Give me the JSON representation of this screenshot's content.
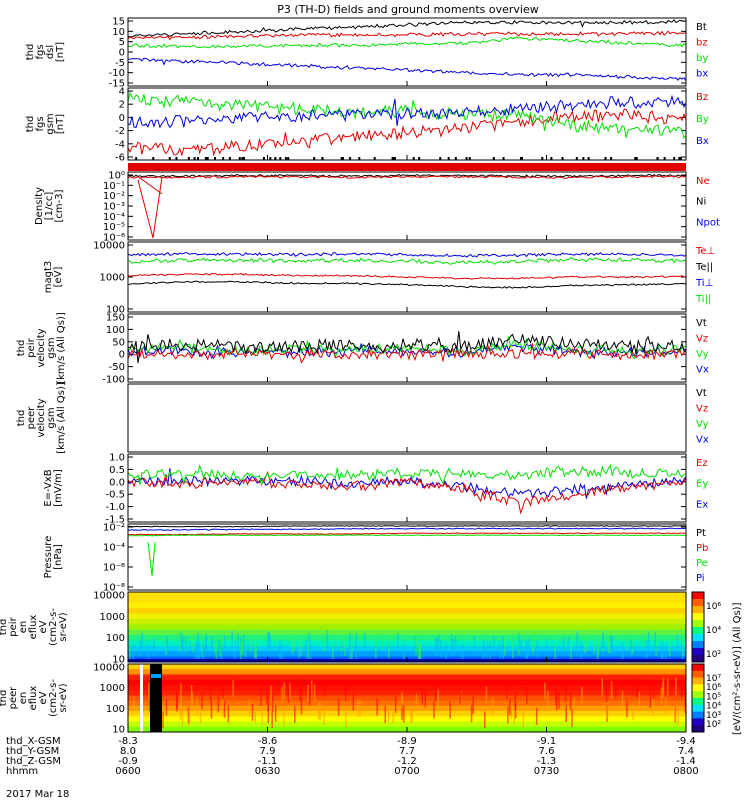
{
  "title": "P3 (TH-D) fields and ground moments overview",
  "date_label": "2017 Mar 18",
  "colors": {
    "black": "#000000",
    "red": "#e00000",
    "green": "#00e000",
    "blue": "#0000e0",
    "frame": "#000000"
  },
  "panels": [
    {
      "id": "fgs-dsl",
      "ylabel": [
        "thd",
        "fgs",
        "dsl",
        "[nT]"
      ],
      "ticks": [
        "15",
        "10",
        "5",
        "0",
        "-5",
        "-10",
        "-15"
      ],
      "ylim": [
        -15,
        15
      ],
      "legend": [
        {
          "label": "Bt",
          "color": "black"
        },
        {
          "label": "bz",
          "color": "red"
        },
        {
          "label": "by",
          "color": "green"
        },
        {
          "label": "bx",
          "color": "blue"
        }
      ]
    },
    {
      "id": "fgs-gsm",
      "ylabel": [
        "thd",
        "fgs",
        "gsm",
        "[nT]"
      ],
      "ticks": [
        "4",
        "2",
        "0",
        "-2",
        "-4",
        "-6"
      ],
      "ylim": [
        -6.5,
        4
      ],
      "legend": [
        {
          "label": "Bz",
          "color": "red"
        },
        {
          "label": "By",
          "color": "green"
        },
        {
          "label": "Bx",
          "color": "blue"
        }
      ]
    },
    {
      "id": "density",
      "ylabel": [
        "Density",
        "[1/cc]",
        "[cm-3]"
      ],
      "ticks": [
        "10⁰",
        "10⁻¹",
        "10⁻²",
        "10⁻³",
        "10⁻⁴",
        "10⁻⁵",
        "10⁻⁶"
      ],
      "scale": "log",
      "legend": [
        {
          "label": "Ne",
          "color": "red"
        },
        {
          "label": "Ni",
          "color": "black"
        },
        {
          "label": "Npot",
          "color": "blue"
        }
      ]
    },
    {
      "id": "temperature",
      "ylabel": [
        "magt3",
        "[eV]"
      ],
      "ticks": [
        "10000",
        "1000",
        "100"
      ],
      "scale": "log",
      "legend": [
        {
          "label": "Te⊥",
          "color": "red"
        },
        {
          "label": "Te||",
          "color": "black"
        },
        {
          "label": "Ti⊥",
          "color": "blue"
        },
        {
          "label": "Ti||",
          "color": "green"
        }
      ]
    },
    {
      "id": "ion-velocity",
      "ylabel": [
        "thd",
        "peir",
        "velocity",
        "gsm",
        "[km/s (All Qs)]"
      ],
      "ticks": [
        "150",
        "100",
        "50",
        "0",
        "-50",
        "-100"
      ],
      "ylim": [
        -100,
        150
      ],
      "legend": [
        {
          "label": "Vt",
          "color": "black"
        },
        {
          "label": "Vz",
          "color": "red"
        },
        {
          "label": "Vy",
          "color": "green"
        },
        {
          "label": "Vx",
          "color": "blue"
        }
      ]
    },
    {
      "id": "electron-velocity",
      "ylabel": [
        "thd",
        "peer",
        "velocity",
        "gsm",
        "[km/s (All Qs)]"
      ],
      "ticks": [],
      "legend": [
        {
          "label": "Vt",
          "color": "black"
        },
        {
          "label": "Vz",
          "color": "red"
        },
        {
          "label": "Vy",
          "color": "green"
        },
        {
          "label": "Vx",
          "color": "blue"
        }
      ]
    },
    {
      "id": "efield",
      "ylabel": [
        "E=-VxB",
        "[mV/m]"
      ],
      "ticks": [
        "1.0",
        "0.5",
        "0.0",
        "-0.5",
        "-1.0",
        "-1.5"
      ],
      "ylim": [
        -1.5,
        1.0
      ],
      "legend": [
        {
          "label": "Ez",
          "color": "red"
        },
        {
          "label": "Ey",
          "color": "green"
        },
        {
          "label": "Ex",
          "color": "blue"
        }
      ]
    },
    {
      "id": "pressure",
      "ylabel": [
        "Pressure",
        "[nPa]"
      ],
      "ticks": [
        "10⁻²",
        "10⁻⁴",
        "10⁻⁶",
        "10⁻⁸"
      ],
      "scale": "log",
      "legend": [
        {
          "label": "Pt",
          "color": "black"
        },
        {
          "label": "Pb",
          "color": "red"
        },
        {
          "label": "Pe",
          "color": "green"
        },
        {
          "label": "Pi",
          "color": "blue"
        }
      ]
    },
    {
      "id": "ion-spectrogram",
      "ylabel": [
        "thd",
        "peir",
        "en",
        "eflux",
        "eV",
        "(cm2-s-",
        "sr-eV)"
      ],
      "ticks": [
        "10000",
        "1000",
        "100",
        "10"
      ],
      "scale": "log"
    },
    {
      "id": "electron-spectrogram",
      "ylabel": [
        "thd",
        "peer",
        "en",
        "eflux",
        "eV",
        "(cm2-s-",
        "sr-eV)"
      ],
      "ticks": [
        "10000",
        "1000",
        "100",
        "10"
      ],
      "scale": "log"
    }
  ],
  "colorbars": {
    "ion": {
      "ticks": [
        "10⁶",
        "10⁴",
        "10²"
      ]
    },
    "electron": {
      "ticks": [
        "10⁷",
        "10⁶",
        "10⁵",
        "10⁴",
        "10³",
        "10²"
      ]
    },
    "label": "[eV/(cm²-s-sr-eV)] (All Qs)]"
  },
  "x_axis": {
    "rows": [
      {
        "label": "thd_X-GSM",
        "values": [
          "-8.3",
          "-8.6",
          "-8.9",
          "-9.1",
          "-9.4"
        ]
      },
      {
        "label": "thd_Y-GSM",
        "values": [
          "8.0",
          "7.9",
          "7.7",
          "7.6",
          "7.4"
        ]
      },
      {
        "label": "thd_Z-GSM",
        "values": [
          "-0.9",
          "-1.1",
          "-1.2",
          "-1.3",
          "-1.4"
        ]
      },
      {
        "label": "hhmm",
        "values": [
          "0600",
          "0630",
          "0700",
          "0730",
          "0800"
        ]
      }
    ]
  },
  "chart_data": {
    "type": "line",
    "title": "P3 (TH-D) fields and ground moments overview",
    "x_time": [
      "0600",
      "0630",
      "0700",
      "0730",
      "0800"
    ],
    "x_range": [
      "0600",
      "0800"
    ],
    "series_fgs_dsl": [
      {
        "name": "Bt",
        "approx": [
          7,
          8,
          9,
          10,
          11,
          12,
          13,
          13,
          13,
          13,
          13.5
        ]
      },
      {
        "name": "bz",
        "approx": [
          6,
          6.5,
          7,
          7.5,
          7.5,
          7.5,
          8,
          8,
          8,
          8,
          8.5
        ]
      },
      {
        "name": "by",
        "approx": [
          3,
          2.5,
          2.5,
          3,
          3,
          3.5,
          4,
          6,
          5,
          4,
          3
        ]
      },
      {
        "name": "bx",
        "approx": [
          -3,
          -4,
          -5,
          -6,
          -7,
          -8,
          -9,
          -10,
          -10,
          -11,
          -12
        ]
      }
    ],
    "series_fgs_gsm": [
      {
        "name": "Bz",
        "approx": [
          -4.5,
          -5,
          -4.5,
          -4,
          -3,
          -2.5,
          -2,
          -1,
          0,
          0,
          -0.5
        ]
      },
      {
        "name": "By",
        "approx": [
          2.5,
          2,
          1.5,
          1,
          0.5,
          0.5,
          0,
          0,
          -1.5,
          -2,
          -2.5
        ]
      },
      {
        "name": "Bx",
        "approx": [
          -1,
          -0.8,
          -0.5,
          0,
          0.3,
          0.5,
          0.5,
          1,
          1.5,
          2,
          2
        ]
      }
    ],
    "series_velocity": [
      {
        "name": "Vt",
        "approx": [
          30,
          40,
          30,
          35,
          30,
          40,
          30,
          60,
          40,
          30,
          30
        ]
      },
      {
        "name": "Vz",
        "approx": [
          5,
          0,
          5,
          0,
          5,
          0,
          5,
          0,
          5,
          0,
          5
        ]
      },
      {
        "name": "Vy",
        "approx": [
          20,
          25,
          15,
          20,
          15,
          25,
          15,
          40,
          20,
          15,
          20
        ]
      },
      {
        "name": "Vx",
        "approx": [
          10,
          15,
          10,
          10,
          10,
          15,
          10,
          30,
          10,
          10,
          10
        ]
      }
    ],
    "series_efield": [
      {
        "name": "Ez",
        "approx": [
          0,
          -0.1,
          0,
          -0.1,
          -0.2,
          0,
          -0.3,
          -0.8,
          -0.5,
          -0.2,
          0
        ]
      },
      {
        "name": "Ey",
        "approx": [
          0.2,
          0.3,
          0.2,
          0.3,
          0.2,
          0.3,
          0.3,
          0.2,
          0.4,
          0.3,
          0.3
        ]
      },
      {
        "name": "Ex",
        "approx": [
          0,
          0,
          0,
          0,
          -0.1,
          0,
          -0.2,
          -0.5,
          -0.3,
          -0.1,
          0
        ]
      }
    ]
  }
}
